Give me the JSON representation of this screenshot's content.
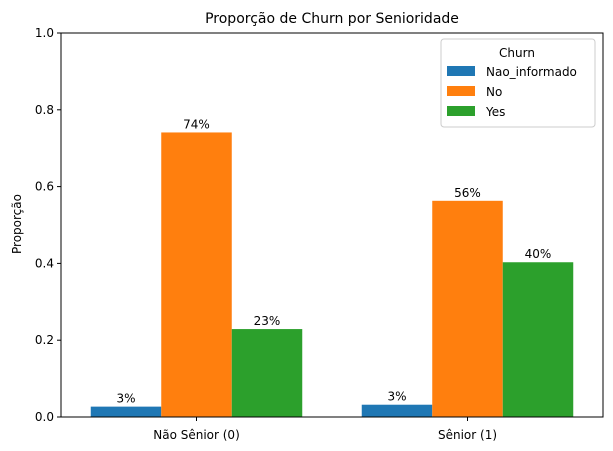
{
  "chart_data": {
    "type": "bar",
    "title": "Proporção de Churn por Senioridade",
    "xlabel": "",
    "ylabel": "Proporção",
    "ylim": [
      0,
      1.0
    ],
    "yticks": [
      "0.0",
      "0.2",
      "0.4",
      "0.6",
      "0.8",
      "1.0"
    ],
    "categories": [
      "Não Sênior (0)",
      "Sênior (1)"
    ],
    "series": [
      {
        "name": "Nao_informado",
        "values": [
          0.027,
          0.032
        ],
        "labels": [
          "3%",
          "3%"
        ],
        "color": "#1f77b4"
      },
      {
        "name": "No",
        "values": [
          0.741,
          0.563
        ],
        "labels": [
          "74%",
          "56%"
        ],
        "color": "#ff7f0e"
      },
      {
        "name": "Yes",
        "values": [
          0.229,
          0.403
        ],
        "labels": [
          "23%",
          "40%"
        ],
        "color": "#2ca02c"
      }
    ],
    "legend": {
      "title": "Churn",
      "position": "top-right"
    },
    "grid": false
  }
}
